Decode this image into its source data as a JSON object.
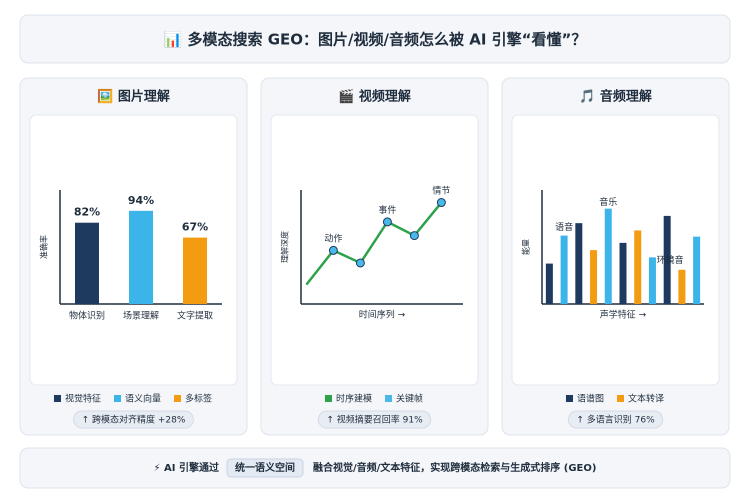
{
  "header": {
    "title": "📊 多模态搜索 GEO：图片/视频/音频怎么被 AI 引擎“看懂”？"
  },
  "chart_data": [
    {
      "type": "bar",
      "title": "🖼️ 图片理解",
      "y_label": "准确率",
      "categories": [
        "物体识别",
        "场景理解",
        "文字提取"
      ],
      "values": [
        82,
        94,
        67
      ],
      "value_labels": [
        "82%",
        "94%",
        "67%"
      ],
      "colors": [
        "#1f3a5f",
        "#3bb4ea",
        "#f39c12"
      ],
      "ylim": [
        0,
        115
      ],
      "legend": [
        {
          "name": "视觉特征",
          "color": "#1f3a5f"
        },
        {
          "name": "语义向量",
          "color": "#3bb4ea"
        },
        {
          "name": "多标签",
          "color": "#f39c12"
        }
      ],
      "stat": "↑ 跨模态对齐精度 +28%"
    },
    {
      "type": "line",
      "title": "🎬 视频理解",
      "y_label": "理解深度",
      "x_label": "时间序列 →",
      "x": [
        0,
        1,
        2,
        3,
        4,
        5
      ],
      "xlim": [
        -0.2,
        5.8
      ],
      "ylim": [
        0,
        100
      ],
      "series": [
        {
          "name": "时序建模",
          "color": "#2ea24a",
          "values": [
            17,
            47,
            36,
            72,
            60,
            89
          ]
        }
      ],
      "marker": {
        "name": "关键帧",
        "color": "#4ab8e8"
      },
      "annotations": [
        {
          "label": "动作",
          "x": 1,
          "y": 57
        },
        {
          "label": "事件",
          "x": 3,
          "y": 82
        },
        {
          "label": "情节",
          "x": 5,
          "y": 99
        }
      ],
      "stat": "↑ 视频摘要召回率 91%"
    },
    {
      "type": "bar",
      "title": "🎵 音频理解",
      "y_label": "能量",
      "x_label": "声学特征 →",
      "categories": [
        null,
        null,
        null,
        null,
        null,
        null,
        null,
        null,
        null,
        null,
        null
      ],
      "ylim": [
        0,
        110
      ],
      "series": [
        {
          "name": "语谱图",
          "color": "#1f3a5f",
          "values": [
            39,
            null,
            78,
            null,
            null,
            59,
            null,
            null,
            85,
            null,
            null
          ]
        },
        {
          "color": "#3bb4ea",
          "values": [
            null,
            66,
            null,
            null,
            92,
            null,
            null,
            45,
            null,
            null,
            65
          ]
        },
        {
          "name": "文本转译",
          "color": "#f39c12",
          "values": [
            null,
            null,
            null,
            52,
            null,
            null,
            71,
            null,
            null,
            33,
            null
          ]
        }
      ],
      "annotations": [
        {
          "label": "语音",
          "x": 1,
          "y": 74
        },
        {
          "label": "音乐",
          "x": 4,
          "y": 98
        },
        {
          "label": "环境音",
          "x": 8.2,
          "y": 42
        }
      ],
      "stat": "↑ 多语言识别 76%"
    }
  ],
  "footer": {
    "lead": "⚡ AI 引擎通过",
    "highlight": "统一语义空间",
    "text": "融合视觉/音频/文本特征，实现跨模态检索与生成式排序 (GEO)"
  }
}
